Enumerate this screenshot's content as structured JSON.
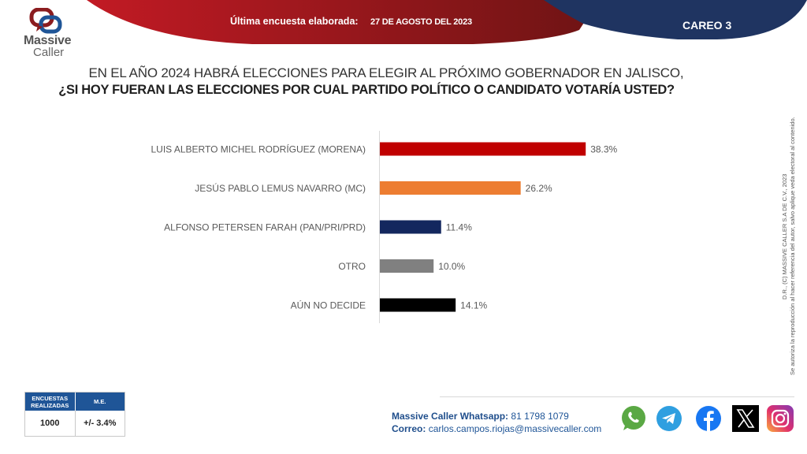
{
  "header": {
    "last_survey_label": "Última encuesta elaborada:",
    "last_survey_date": "27 DE AGOSTO DEL 2023",
    "badge": "CAREO 3"
  },
  "brand": {
    "name_line1": "Massive",
    "name_line2": "Caller"
  },
  "question": {
    "line1": "EN EL AÑO 2024 HABRÁ ELECCIONES PARA ELEGIR AL PRÓXIMO GOBERNADOR EN JALISCO,",
    "line2": "¿SI HOY FUERAN LAS ELECCIONES POR CUAL PARTIDO POLÍTICO O CANDIDATO VOTARÍA USTED?"
  },
  "chart_data": {
    "type": "bar",
    "orientation": "horizontal",
    "title": "¿SI HOY FUERAN LAS ELECCIONES POR CUAL PARTIDO POLÍTICO O CANDIDATO VOTARÍA USTED?",
    "xlabel": "",
    "ylabel": "",
    "categories": [
      "LUIS ALBERTO MICHEL RODRÍGUEZ (MORENA)",
      "JESÚS PABLO LEMUS NAVARRO (MC)",
      "ALFONSO PETERSEN FARAH (PAN/PRI/PRD)",
      "OTRO",
      "AÚN NO DECIDE"
    ],
    "values": [
      38.3,
      26.2,
      11.4,
      10.0,
      14.1
    ],
    "value_labels": [
      "38.3%",
      "26.2%",
      "11.4%",
      "10.0%",
      "14.1%"
    ],
    "colors": [
      "#c00000",
      "#ed7d31",
      "#13275e",
      "#808080",
      "#000000"
    ],
    "unit": "%",
    "grid": false,
    "legend": "none"
  },
  "sidebar_notice": {
    "line1": "D.R., (C) MASSIVE CALLER S.A DE C.V., 2023",
    "line2": "Se autoriza la reproducción al hacer referencia del autor, salvo aplique veda electoral al contenido."
  },
  "stats": {
    "surveys_header": "ENCUESTAS REALIZADAS",
    "surveys_header_l1": "ENCUESTAS",
    "surveys_header_l2": "REALIZADAS",
    "me_header": "M.E.",
    "surveys_value": "1000",
    "me_value": "+/- 3.4%"
  },
  "contact": {
    "whatsapp_label": "Massive Caller Whatsapp:",
    "whatsapp_value": "81 1798 1079",
    "email_label": "Correo:",
    "email_value": "carlos.campos.riojas@massivecaller.com"
  },
  "social": [
    "whatsapp-icon",
    "telegram-icon",
    "facebook-icon",
    "x-icon",
    "instagram-icon"
  ],
  "colors": {
    "red": "#b3131b",
    "navy": "#1f3864",
    "blue": "#1f5597"
  }
}
